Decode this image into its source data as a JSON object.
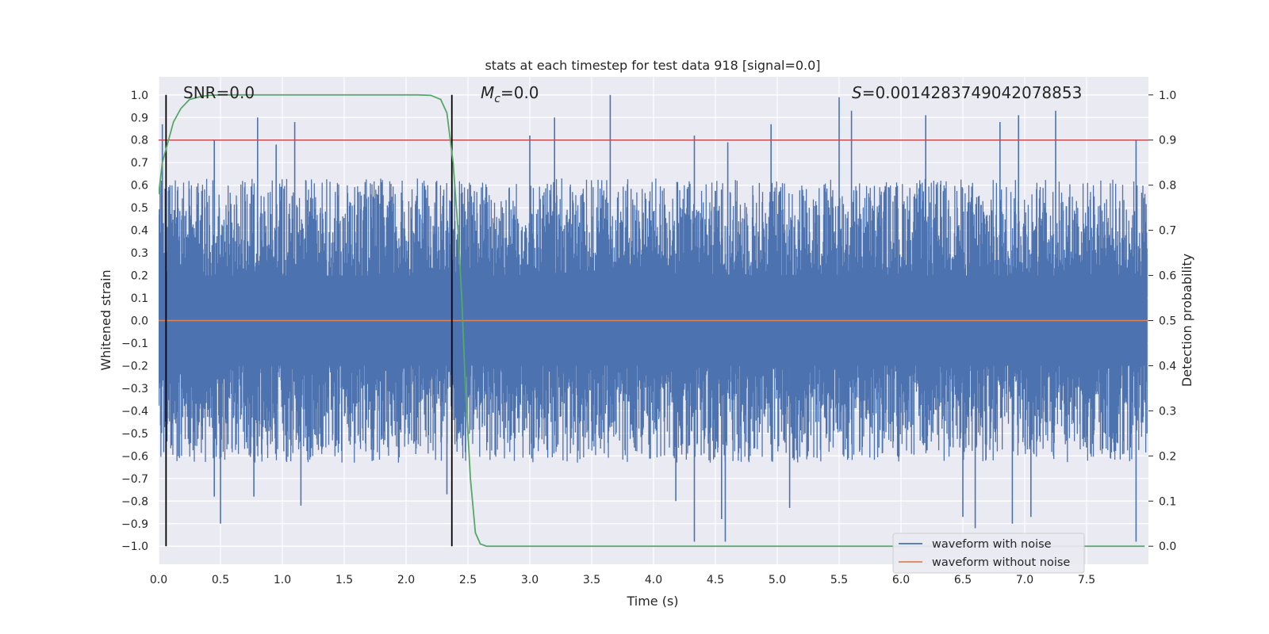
{
  "chart_data": {
    "type": "line",
    "title": "stats at each timestep for test data 918 [signal=0.0]",
    "xlabel": "Time (s)",
    "ylabel_left": "Whitened strain",
    "ylabel_right": "Detection probability",
    "xlim": [
      0.0,
      8.0
    ],
    "ylim_left": [
      -1.08,
      1.08
    ],
    "ylim_right": [
      -0.04,
      1.04
    ],
    "xticks": [
      0.0,
      0.5,
      1.0,
      1.5,
      2.0,
      2.5,
      3.0,
      3.5,
      4.0,
      4.5,
      5.0,
      5.5,
      6.0,
      6.5,
      7.0,
      7.5
    ],
    "xtick_labels": [
      "0.0",
      "0.5",
      "1.0",
      "1.5",
      "2.0",
      "2.5",
      "3.0",
      "3.5",
      "4.0",
      "4.5",
      "5.0",
      "5.5",
      "6.0",
      "6.5",
      "7.0",
      "7.5"
    ],
    "yticks_left": [
      -1.0,
      -0.9,
      -0.8,
      -0.7,
      -0.6,
      -0.5,
      -0.4,
      -0.3,
      -0.2,
      -0.1,
      0.0,
      0.1,
      0.2,
      0.3,
      0.4,
      0.5,
      0.6,
      0.7,
      0.8,
      0.9,
      1.0
    ],
    "ytick_labels_left": [
      "−1.0",
      "−0.9",
      "−0.8",
      "−0.7",
      "−0.6",
      "−0.5",
      "−0.4",
      "−0.3",
      "−0.2",
      "−0.1",
      "0.0",
      "0.1",
      "0.2",
      "0.3",
      "0.4",
      "0.5",
      "0.6",
      "0.7",
      "0.8",
      "0.9",
      "1.0"
    ],
    "yticks_right": [
      0.0,
      0.1,
      0.2,
      0.3,
      0.4,
      0.5,
      0.6,
      0.7,
      0.8,
      0.9,
      1.0
    ],
    "ytick_labels_right": [
      "0.0",
      "0.1",
      "0.2",
      "0.3",
      "0.4",
      "0.5",
      "0.6",
      "0.7",
      "0.8",
      "0.9",
      "1.0"
    ],
    "grid": true,
    "series": [
      {
        "name": "waveform with noise",
        "color": "#4c72b0",
        "axis": "left",
        "description": "dense whitened noise, envelope mostly within +/-0.6 with spikes to +/-1.0",
        "peaks_positive": [
          [
            0.03,
            0.87
          ],
          [
            0.45,
            0.8
          ],
          [
            0.8,
            0.9
          ],
          [
            0.95,
            0.78
          ],
          [
            1.1,
            0.88
          ],
          [
            3.0,
            0.82
          ],
          [
            3.2,
            0.9
          ],
          [
            3.65,
            1.0
          ],
          [
            4.33,
            0.82
          ],
          [
            4.6,
            0.79
          ],
          [
            4.95,
            0.87
          ],
          [
            5.5,
            0.99
          ],
          [
            5.6,
            0.93
          ],
          [
            6.2,
            0.91
          ],
          [
            6.8,
            0.88
          ],
          [
            6.95,
            0.91
          ],
          [
            7.25,
            0.93
          ],
          [
            7.9,
            0.8
          ]
        ],
        "peaks_negative": [
          [
            0.45,
            -0.78
          ],
          [
            0.5,
            -0.9
          ],
          [
            0.77,
            -0.78
          ],
          [
            1.15,
            -0.82
          ],
          [
            2.33,
            -0.77
          ],
          [
            4.18,
            -0.8
          ],
          [
            4.33,
            -0.98
          ],
          [
            4.58,
            -0.98
          ],
          [
            4.55,
            -0.88
          ],
          [
            5.1,
            -0.83
          ],
          [
            6.5,
            -0.87
          ],
          [
            6.6,
            -0.92
          ],
          [
            6.9,
            -0.9
          ],
          [
            7.05,
            -0.87
          ],
          [
            7.9,
            -0.98
          ]
        ]
      },
      {
        "name": "waveform without noise",
        "color": "#dd8452",
        "axis": "left",
        "x": [
          0.0,
          8.0
        ],
        "y": [
          0.0,
          0.0
        ]
      },
      {
        "name": "detection probability",
        "color": "#55a868",
        "axis": "right",
        "x": [
          0.0,
          0.03,
          0.08,
          0.12,
          0.18,
          0.25,
          0.32,
          0.4,
          0.5,
          1.0,
          1.5,
          2.0,
          2.1,
          2.2,
          2.28,
          2.33,
          2.38,
          2.42,
          2.45,
          2.48,
          2.52,
          2.56,
          2.6,
          2.65,
          3.0,
          4.0,
          5.0,
          6.0,
          7.0,
          7.5,
          7.97
        ],
        "y": [
          0.78,
          0.85,
          0.9,
          0.94,
          0.97,
          0.99,
          0.995,
          0.999,
          1.0,
          1.0,
          1.0,
          1.0,
          1.0,
          0.999,
          0.99,
          0.96,
          0.85,
          0.7,
          0.55,
          0.35,
          0.15,
          0.03,
          0.005,
          0.0,
          0.0,
          0.0,
          0.0,
          0.0,
          0.0,
          0.0,
          0.0
        ]
      }
    ],
    "threshold": {
      "color": "#c44e52",
      "axis": "right",
      "value": 0.9
    },
    "vertical_lines": {
      "color": "#000000",
      "x": [
        0.06,
        2.37
      ],
      "ymin_right": 0.0,
      "ymax_right": 1.0
    },
    "annotations": [
      {
        "id": "snr",
        "text": "SNR=0.0"
      },
      {
        "id": "mc",
        "symbol": "M",
        "subscript": "c",
        "text": "=0.0"
      },
      {
        "id": "s",
        "symbol": "S",
        "text": "=0.0014283749042078853"
      }
    ],
    "legend": {
      "position": "bottom-right",
      "entries": [
        {
          "label": "waveform with noise",
          "color": "#4c72b0"
        },
        {
          "label": "waveform without noise",
          "color": "#dd8452"
        }
      ]
    },
    "colors": {
      "background": "#eaeaf2",
      "grid": "#ffffff",
      "text": "#262626"
    }
  }
}
